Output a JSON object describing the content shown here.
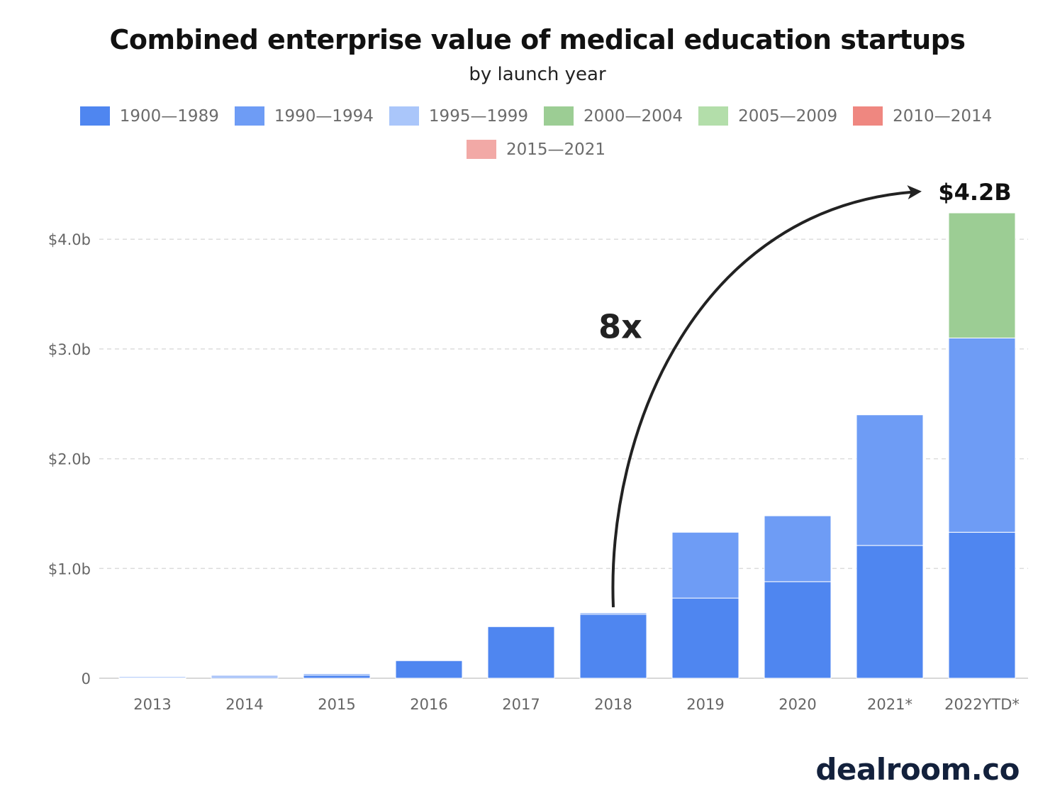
{
  "chart_data": {
    "type": "bar",
    "stacked": true,
    "title": "Combined enterprise value of medical education startups",
    "subtitle": "by launch year",
    "categories": [
      "2013",
      "2014",
      "2015",
      "2016",
      "2017",
      "2018",
      "2019",
      "2020",
      "2021*",
      "2022YTD*"
    ],
    "series": [
      {
        "name": "1900—1989",
        "color": "#4f86f0",
        "values": [
          0.01,
          0.02,
          0.03,
          0.16,
          0.47,
          0.59,
          0.73,
          0.88,
          1.21,
          1.33
        ]
      },
      {
        "name": "1990—1994",
        "color": "#6e9cf5",
        "values": [
          0,
          0.005,
          0.01,
          0,
          0,
          0.005,
          0.6,
          0.6,
          1.19,
          1.77
        ]
      },
      {
        "name": "1995—1999",
        "color": "#aac6fa",
        "values": [
          0.005,
          0,
          0,
          0,
          0,
          0,
          0,
          0,
          0,
          0
        ]
      },
      {
        "name": "2000—2004",
        "color": "#9ccd94",
        "values": [
          0,
          0,
          0,
          0,
          0,
          0,
          0,
          0,
          0,
          1.14
        ]
      },
      {
        "name": "2005—2009",
        "color": "#b3deaa",
        "values": [
          0,
          0,
          0,
          0,
          0,
          0,
          0,
          0,
          0,
          0
        ]
      },
      {
        "name": "2010—2014",
        "color": "#ef8780",
        "values": [
          0,
          0,
          0,
          0,
          0,
          0,
          0,
          0,
          0,
          0
        ]
      },
      {
        "name": "2015—2021",
        "color": "#f2a9a6",
        "values": [
          0,
          0,
          0,
          0,
          0,
          0,
          0,
          0,
          0,
          0
        ]
      }
    ],
    "ylim": [
      0,
      4.2
    ],
    "yticks": [
      {
        "value": 0,
        "label": "0"
      },
      {
        "value": 1,
        "label": "$1.0b"
      },
      {
        "value": 2,
        "label": "$2.0b"
      },
      {
        "value": 3,
        "label": "$3.0b"
      },
      {
        "value": 4,
        "label": "$4.0b"
      }
    ],
    "grid": true,
    "legend_position": "top",
    "annotations": {
      "multiplier": "8x",
      "total_label": "$4.2B",
      "arrow_from_category": "2018",
      "arrow_to_category": "2022YTD*"
    }
  },
  "source_logo": "dealroom.co",
  "colors": {
    "gridline": "#dddddd",
    "axis_text": "#666666",
    "arrow": "#222222"
  }
}
